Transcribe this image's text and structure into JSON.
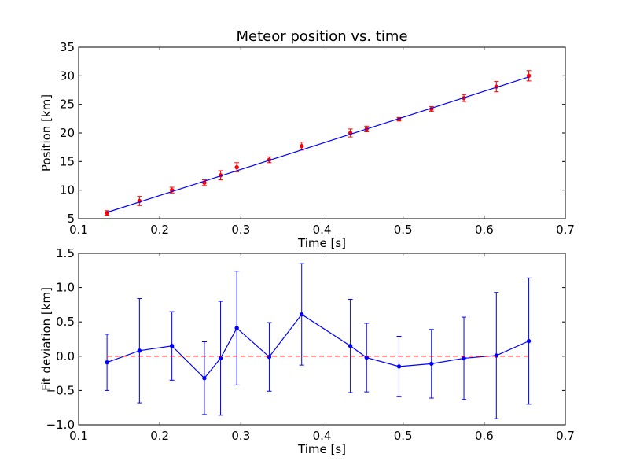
{
  "colors": {
    "fit_line": "#0000ff",
    "data_marker": "#ff0000",
    "data_errorbar": "#ff0000",
    "deviation_line": "#0000ff",
    "zero_line": "#ff0000",
    "axes": "#000000"
  },
  "chart_data": [
    {
      "type": "scatter",
      "title": "Meteor position vs. time",
      "xlabel": "Time [s]",
      "ylabel": "Position [km]",
      "xlim": [
        0.1,
        0.7
      ],
      "ylim": [
        5,
        35
      ],
      "xticks": [
        0.1,
        0.2,
        0.3,
        0.4,
        0.5,
        0.6,
        0.7
      ],
      "xtick_labels": [
        "0.1",
        "0.2",
        "0.3",
        "0.4",
        "0.5",
        "0.6",
        "0.7"
      ],
      "yticks": [
        5,
        10,
        15,
        20,
        25,
        30,
        35
      ],
      "ytick_labels": [
        "5",
        "10",
        "15",
        "20",
        "25",
        "30",
        "35"
      ],
      "grid": false,
      "legend": "none",
      "series": [
        {
          "style": "errorbar-points",
          "x": [
            0.135,
            0.175,
            0.215,
            0.255,
            0.275,
            0.295,
            0.335,
            0.375,
            0.435,
            0.455,
            0.495,
            0.535,
            0.575,
            0.615,
            0.655
          ],
          "y": [
            6.0,
            8.1,
            10.0,
            11.3,
            12.6,
            14.0,
            15.3,
            17.7,
            20.0,
            20.7,
            22.4,
            24.2,
            26.1,
            28.1,
            30.0
          ],
          "yerr": [
            0.4,
            0.8,
            0.5,
            0.5,
            0.8,
            0.8,
            0.5,
            0.7,
            0.7,
            0.5,
            0.3,
            0.4,
            0.6,
            0.9,
            0.9
          ]
        },
        {
          "style": "line",
          "x": [
            0.135,
            0.655
          ],
          "y": [
            6.1,
            29.8
          ]
        }
      ]
    },
    {
      "type": "line",
      "title": "",
      "xlabel": "Time [s]",
      "ylabel": "Fit deviation [km]",
      "xlim": [
        0.1,
        0.7
      ],
      "ylim": [
        -1.0,
        1.5
      ],
      "xticks": [
        0.1,
        0.2,
        0.3,
        0.4,
        0.5,
        0.6,
        0.7
      ],
      "xtick_labels": [
        "0.1",
        "0.2",
        "0.3",
        "0.4",
        "0.5",
        "0.6",
        "0.7"
      ],
      "yticks": [
        -1.0,
        -0.5,
        0.0,
        0.5,
        1.0,
        1.5
      ],
      "ytick_labels": [
        "−1.0",
        "−0.5",
        "0.0",
        "0.5",
        "1.0",
        "1.5"
      ],
      "grid": false,
      "legend": "none",
      "series": [
        {
          "style": "errorbar-line",
          "x": [
            0.135,
            0.175,
            0.215,
            0.255,
            0.275,
            0.295,
            0.335,
            0.375,
            0.435,
            0.455,
            0.495,
            0.535,
            0.575,
            0.615,
            0.655
          ],
          "y": [
            -0.09,
            0.08,
            0.15,
            -0.32,
            -0.03,
            0.41,
            -0.01,
            0.61,
            0.15,
            -0.02,
            -0.15,
            -0.11,
            -0.03,
            0.01,
            0.22
          ],
          "yerr": [
            0.41,
            0.76,
            0.5,
            0.53,
            0.83,
            0.83,
            0.5,
            0.74,
            0.68,
            0.5,
            0.44,
            0.5,
            0.6,
            0.92,
            0.92
          ]
        },
        {
          "style": "dashed-line",
          "x": [
            0.135,
            0.655
          ],
          "y": [
            0,
            0
          ]
        }
      ]
    }
  ]
}
